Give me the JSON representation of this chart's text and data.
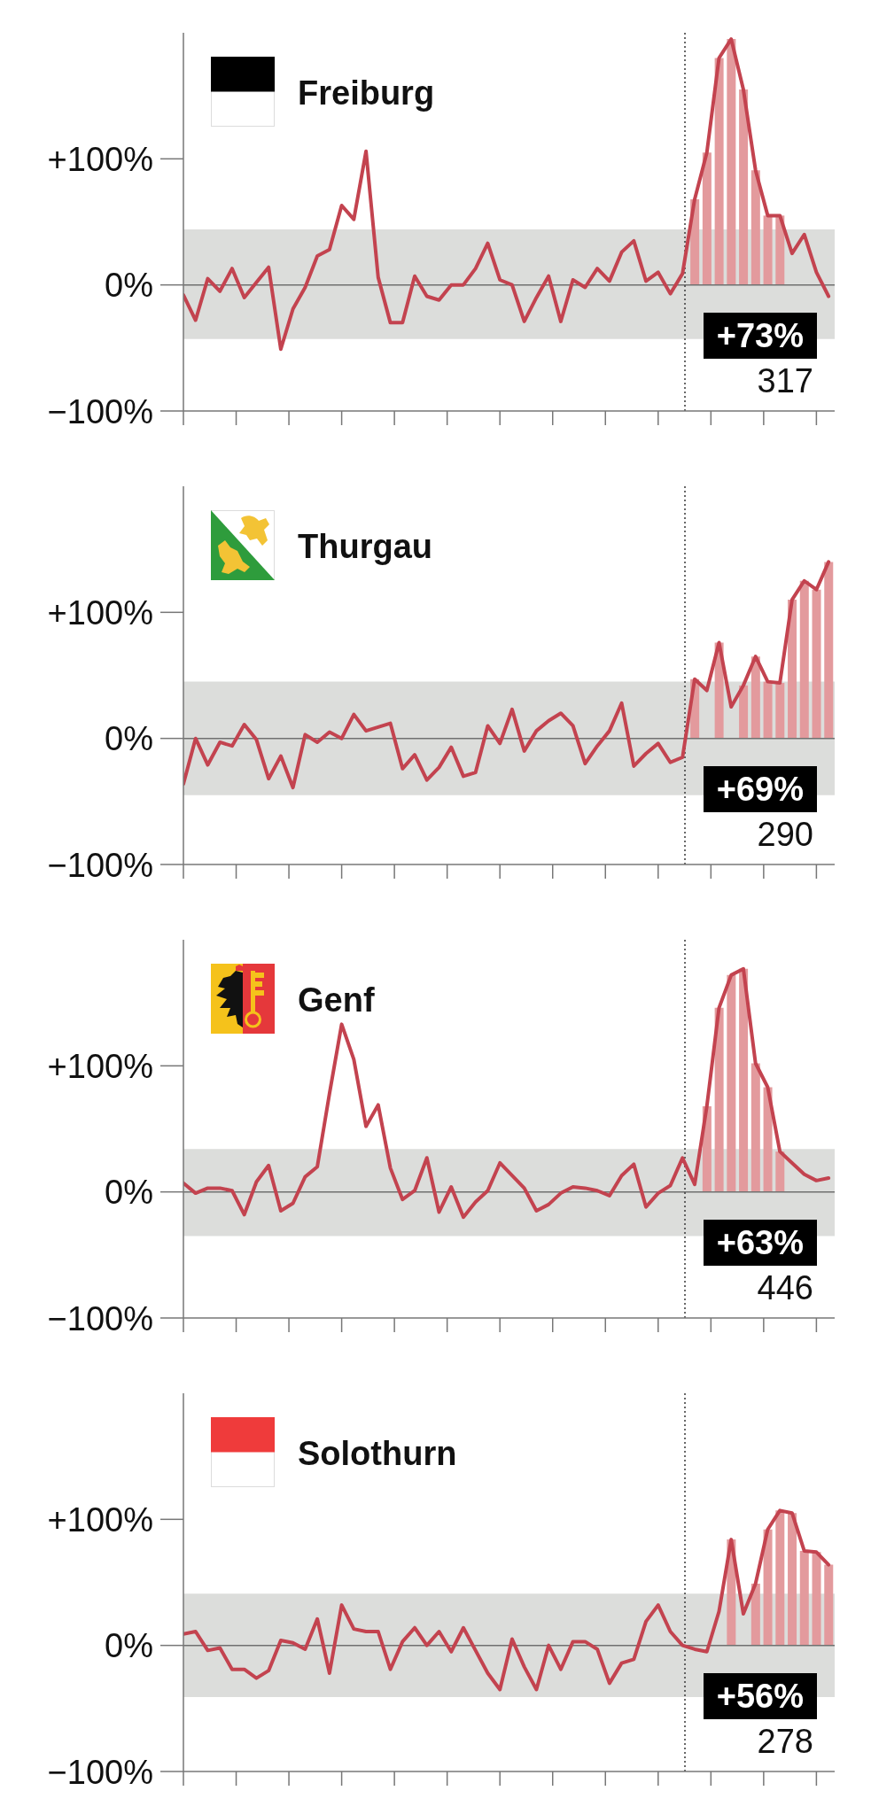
{
  "chart_data": [
    {
      "type": "line",
      "title": "Freiburg",
      "categories": [
        null,
        null,
        null,
        null,
        null,
        null,
        null,
        null,
        null,
        null,
        null,
        null,
        null,
        null,
        null,
        null,
        null,
        null,
        null,
        null,
        null,
        null,
        null,
        null,
        null,
        null,
        null,
        null,
        null,
        null,
        null,
        null,
        null,
        null,
        null,
        null,
        null,
        null,
        null,
        null,
        null,
        null,
        null,
        null,
        null,
        null,
        null,
        null,
        null,
        null,
        null,
        null,
        null,
        null
      ],
      "series": [
        {
          "type": "bar",
          "color": "#e39a9d",
          "values": [
            null,
            null,
            null,
            null,
            null,
            null,
            null,
            null,
            null,
            null,
            null,
            null,
            null,
            null,
            null,
            null,
            null,
            null,
            null,
            null,
            null,
            null,
            null,
            null,
            null,
            null,
            null,
            null,
            null,
            null,
            null,
            null,
            null,
            null,
            null,
            null,
            null,
            null,
            null,
            null,
            null,
            null,
            68,
            105,
            180,
            195,
            155,
            91,
            55,
            55,
            null,
            null,
            null,
            null
          ]
        },
        {
          "color": "#c3434f",
          "values": [
            -8,
            -28,
            5,
            -5,
            13,
            -10,
            2,
            14,
            -51,
            -19,
            -2,
            23,
            28,
            63,
            52,
            106,
            6,
            -30,
            -30,
            7,
            -9,
            -12,
            0,
            0,
            13,
            33,
            4,
            0,
            -29,
            -10,
            7,
            -29,
            4,
            -2,
            13,
            3,
            26,
            35,
            3,
            10,
            -7,
            9,
            68,
            105,
            180,
            195,
            155,
            91,
            55,
            55,
            25,
            40,
            10,
            -9
          ]
        }
      ],
      "ylim": [
        -100,
        200
      ],
      "yticks": [
        {
          "value": -100,
          "label": "−100%"
        },
        {
          "value": 0,
          "label": "0%"
        },
        {
          "value": 100,
          "label": "+100%"
        }
      ],
      "tick_labels": "y",
      "bands": [
        {
          "axis": "y",
          "from": -43,
          "to": 44,
          "color": "#dcdddb"
        }
      ],
      "ref_lines": [
        {
          "axis": "y",
          "value": 0,
          "color": "#707070",
          "line_style": "solid"
        }
      ],
      "annotations": [
        "+73%",
        "317"
      ],
      "marker": "none",
      "line_style": "solid"
    },
    {
      "type": "line",
      "title": "Thurgau",
      "categories": [
        null,
        null,
        null,
        null,
        null,
        null,
        null,
        null,
        null,
        null,
        null,
        null,
        null,
        null,
        null,
        null,
        null,
        null,
        null,
        null,
        null,
        null,
        null,
        null,
        null,
        null,
        null,
        null,
        null,
        null,
        null,
        null,
        null,
        null,
        null,
        null,
        null,
        null,
        null,
        null,
        null,
        null,
        null,
        null,
        null,
        null,
        null,
        null,
        null,
        null,
        null,
        null,
        null,
        null
      ],
      "series": [
        {
          "type": "bar",
          "color": "#e39a9d",
          "values": [
            null,
            null,
            null,
            null,
            null,
            null,
            null,
            null,
            null,
            null,
            null,
            null,
            null,
            null,
            null,
            null,
            null,
            null,
            null,
            null,
            null,
            null,
            null,
            null,
            null,
            null,
            null,
            null,
            null,
            null,
            null,
            null,
            null,
            null,
            null,
            null,
            null,
            null,
            null,
            null,
            null,
            null,
            47,
            null,
            76,
            null,
            42,
            65,
            45,
            44,
            110,
            125,
            118,
            140
          ]
        },
        {
          "color": "#c3434f",
          "values": [
            -36,
            0,
            -21,
            -3,
            -6,
            11,
            -1,
            -32,
            -14,
            -39,
            3,
            -3,
            5,
            0,
            19,
            6,
            9,
            12,
            -24,
            -13,
            -33,
            -23,
            -7,
            -30,
            -27,
            10,
            -4,
            23,
            -10,
            6,
            14,
            20,
            10,
            -20,
            -6,
            6,
            28,
            -22,
            -12,
            -4,
            -19,
            -15,
            47,
            38,
            76,
            25,
            42,
            65,
            45,
            44,
            110,
            125,
            118,
            140
          ]
        }
      ],
      "ylim": [
        -100,
        200
      ],
      "yticks": [
        {
          "value": -100,
          "label": "−100%"
        },
        {
          "value": 0,
          "label": "0%"
        },
        {
          "value": 100,
          "label": "+100%"
        }
      ],
      "tick_labels": "y",
      "bands": [
        {
          "axis": "y",
          "from": -45,
          "to": 45,
          "color": "#dcdddb"
        }
      ],
      "ref_lines": [
        {
          "axis": "y",
          "value": 0,
          "color": "#707070",
          "line_style": "solid"
        }
      ],
      "annotations": [
        "+69%",
        "290"
      ],
      "marker": "none",
      "line_style": "solid"
    },
    {
      "type": "line",
      "title": "Genf",
      "categories": [
        null,
        null,
        null,
        null,
        null,
        null,
        null,
        null,
        null,
        null,
        null,
        null,
        null,
        null,
        null,
        null,
        null,
        null,
        null,
        null,
        null,
        null,
        null,
        null,
        null,
        null,
        null,
        null,
        null,
        null,
        null,
        null,
        null,
        null,
        null,
        null,
        null,
        null,
        null,
        null,
        null,
        null,
        null,
        null,
        null,
        null,
        null,
        null,
        null,
        null,
        null,
        null,
        null,
        null
      ],
      "series": [
        {
          "type": "bar",
          "color": "#e39a9d",
          "values": [
            null,
            null,
            null,
            null,
            null,
            null,
            null,
            null,
            null,
            null,
            null,
            null,
            null,
            null,
            null,
            null,
            null,
            null,
            null,
            null,
            null,
            null,
            null,
            null,
            null,
            null,
            null,
            null,
            null,
            null,
            null,
            null,
            null,
            null,
            null,
            null,
            null,
            null,
            null,
            null,
            null,
            null,
            null,
            68,
            146,
            172,
            177,
            102,
            83,
            32,
            null,
            null,
            null,
            null
          ]
        },
        {
          "color": "#c3434f",
          "values": [
            7,
            -1,
            3,
            3,
            1,
            -18,
            8,
            21,
            -15,
            -9,
            12,
            20,
            78,
            133,
            105,
            52,
            69,
            19,
            -6,
            1,
            27,
            -16,
            4,
            -20,
            -8,
            1,
            23,
            13,
            3,
            -15,
            -10,
            -1,
            4,
            3,
            1,
            -3,
            13,
            22,
            -12,
            -1,
            5,
            27,
            6,
            68,
            146,
            172,
            177,
            102,
            83,
            32,
            23,
            14,
            9,
            11
          ]
        }
      ],
      "ylim": [
        -100,
        200
      ],
      "yticks": [
        {
          "value": -100,
          "label": "−100%"
        },
        {
          "value": 0,
          "label": "0%"
        },
        {
          "value": 100,
          "label": "+100%"
        }
      ],
      "tick_labels": "y",
      "bands": [
        {
          "axis": "y",
          "from": -35,
          "to": 34,
          "color": "#dcdddb"
        }
      ],
      "ref_lines": [
        {
          "axis": "y",
          "value": 0,
          "color": "#707070",
          "line_style": "solid"
        }
      ],
      "annotations": [
        "+63%",
        "446"
      ],
      "marker": "none",
      "line_style": "solid"
    },
    {
      "type": "line",
      "title": "Solothurn",
      "categories": [
        null,
        null,
        null,
        null,
        null,
        null,
        null,
        null,
        null,
        null,
        null,
        null,
        null,
        null,
        null,
        null,
        null,
        null,
        null,
        null,
        null,
        null,
        null,
        null,
        null,
        null,
        null,
        null,
        null,
        null,
        null,
        null,
        null,
        null,
        null,
        null,
        null,
        null,
        null,
        null,
        null,
        null,
        null,
        null,
        null,
        null,
        null,
        null,
        null,
        null,
        null,
        null,
        null,
        null
      ],
      "series": [
        {
          "type": "bar",
          "color": "#e39a9d",
          "values": [
            null,
            null,
            null,
            null,
            null,
            null,
            null,
            null,
            null,
            null,
            null,
            null,
            null,
            null,
            null,
            null,
            null,
            null,
            null,
            null,
            null,
            null,
            null,
            null,
            null,
            null,
            null,
            null,
            null,
            null,
            null,
            null,
            null,
            null,
            null,
            null,
            null,
            null,
            null,
            null,
            null,
            null,
            null,
            null,
            null,
            84,
            null,
            49,
            92,
            107,
            105,
            75,
            74,
            64
          ]
        },
        {
          "color": "#c3434f",
          "values": [
            9,
            11,
            -4,
            -2,
            -19,
            -19,
            -26,
            -20,
            4,
            2,
            -3,
            21,
            -22,
            32,
            13,
            11,
            11,
            -19,
            3,
            14,
            0,
            11,
            -5,
            14,
            -4,
            -22,
            -35,
            5,
            -17,
            -35,
            0,
            -19,
            3,
            3,
            -3,
            -30,
            -14,
            -11,
            19,
            32,
            11,
            0,
            -3,
            -5,
            27,
            84,
            25,
            49,
            92,
            107,
            105,
            75,
            74,
            64
          ]
        }
      ],
      "ylim": [
        -100,
        200
      ],
      "yticks": [
        {
          "value": -100,
          "label": "−100%"
        },
        {
          "value": 0,
          "label": "0%"
        },
        {
          "value": 100,
          "label": "+100%"
        }
      ],
      "tick_labels": "y",
      "bands": [
        {
          "axis": "y",
          "from": -41,
          "to": 41,
          "color": "#dcdddb"
        }
      ],
      "ref_lines": [
        {
          "axis": "y",
          "value": 0,
          "color": "#707070",
          "line_style": "solid"
        }
      ],
      "annotations": [
        "+56%",
        "278"
      ],
      "marker": "none",
      "line_style": "solid"
    }
  ]
}
